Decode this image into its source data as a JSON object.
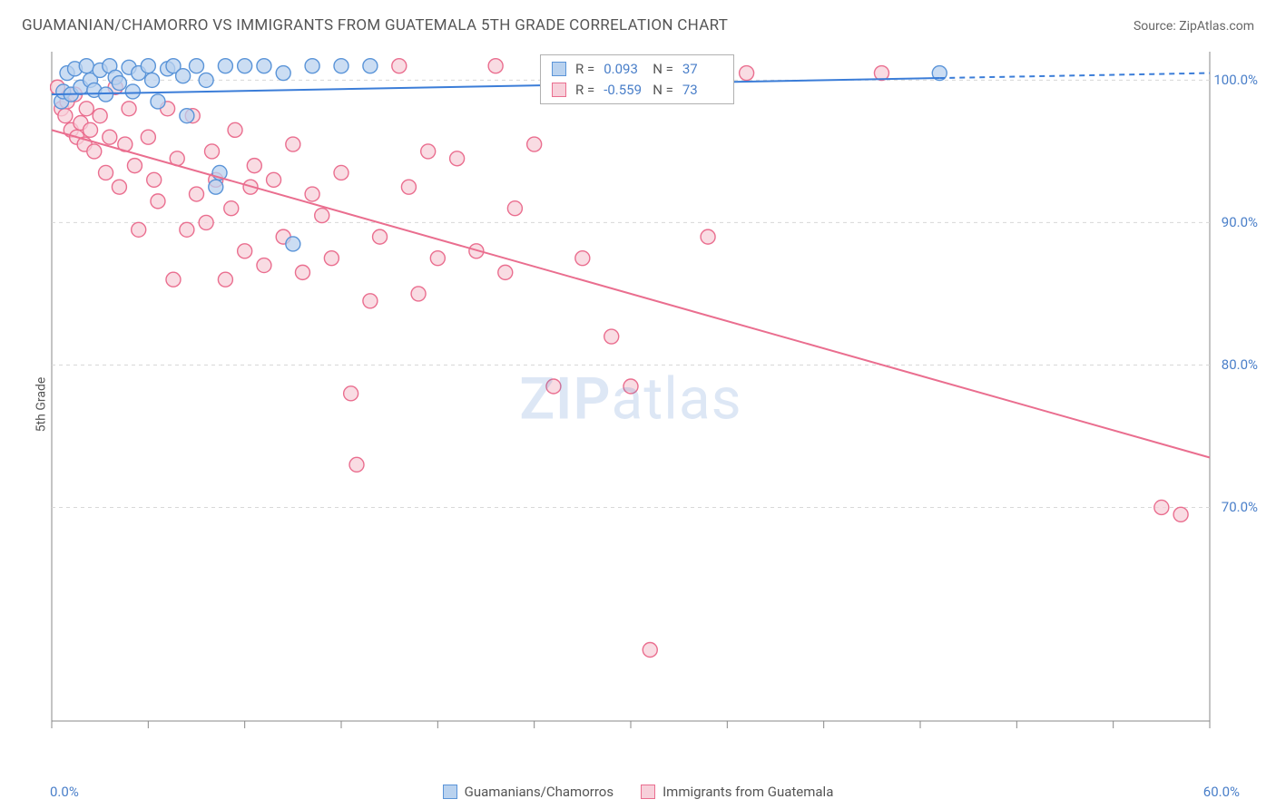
{
  "title": "GUAMANIAN/CHAMORRO VS IMMIGRANTS FROM GUATEMALA 5TH GRADE CORRELATION CHART",
  "source": "Source: ZipAtlas.com",
  "y_axis_label": "5th Grade",
  "watermark": {
    "zip": "ZIP",
    "atlas": "atlas"
  },
  "chart": {
    "type": "scatter",
    "background_color": "#ffffff",
    "grid_color": "#d8d8d8",
    "axis_color": "#888888",
    "tick_color": "#888888",
    "xlim": [
      0,
      60
    ],
    "ylim": [
      55,
      102
    ],
    "x_tick_positions": [
      0,
      5,
      10,
      15,
      20,
      25,
      30,
      35,
      40,
      45,
      50,
      55,
      60
    ],
    "y_ticks": [
      {
        "value": 100,
        "label": "100.0%"
      },
      {
        "value": 90,
        "label": "90.0%"
      },
      {
        "value": 80,
        "label": "80.0%"
      },
      {
        "value": 70,
        "label": "70.0%"
      }
    ],
    "x_min_label": "0.0%",
    "x_max_label": "60.0%",
    "marker_radius": 8,
    "marker_stroke_width": 1.4,
    "line_width": 2,
    "series": [
      {
        "name": "Guamanians/Chamorros",
        "fill_color": "#b9d2ef",
        "stroke_color": "#5a94d8",
        "line_color": "#3b7dd8",
        "R_label": "R =",
        "R_value": "0.093",
        "N_label": "N =",
        "N_value": "37",
        "regression": {
          "x1": 0,
          "y1": 99.0,
          "x2": 60,
          "y2": 100.5,
          "dash_after_x": 46
        },
        "points": [
          [
            0.5,
            98.5
          ],
          [
            0.6,
            99.2
          ],
          [
            0.8,
            100.5
          ],
          [
            1.0,
            99.0
          ],
          [
            1.2,
            100.8
          ],
          [
            1.5,
            99.5
          ],
          [
            1.8,
            101.0
          ],
          [
            2.0,
            100.0
          ],
          [
            2.2,
            99.3
          ],
          [
            2.5,
            100.7
          ],
          [
            2.8,
            99.0
          ],
          [
            3.0,
            101.0
          ],
          [
            3.3,
            100.2
          ],
          [
            3.5,
            99.8
          ],
          [
            4.0,
            100.9
          ],
          [
            4.2,
            99.2
          ],
          [
            4.5,
            100.5
          ],
          [
            5.0,
            101.0
          ],
          [
            5.2,
            100.0
          ],
          [
            5.5,
            98.5
          ],
          [
            6.0,
            100.8
          ],
          [
            6.3,
            101.0
          ],
          [
            6.8,
            100.3
          ],
          [
            7.0,
            97.5
          ],
          [
            7.5,
            101.0
          ],
          [
            8.0,
            100.0
          ],
          [
            8.5,
            92.5
          ],
          [
            8.7,
            93.5
          ],
          [
            9.0,
            101.0
          ],
          [
            10.0,
            101.0
          ],
          [
            11.0,
            101.0
          ],
          [
            12.0,
            100.5
          ],
          [
            12.5,
            88.5
          ],
          [
            13.5,
            101.0
          ],
          [
            15.0,
            101.0
          ],
          [
            16.5,
            101.0
          ],
          [
            46.0,
            100.5
          ]
        ]
      },
      {
        "name": "Immigrants from Guatemala",
        "fill_color": "#f7d0da",
        "stroke_color": "#ea6e8f",
        "line_color": "#ea6e8f",
        "R_label": "R =",
        "R_value": "-0.559",
        "N_label": "N =",
        "N_value": "73",
        "regression": {
          "x1": 0,
          "y1": 96.5,
          "x2": 60,
          "y2": 73.5,
          "dash_after_x": 60
        },
        "points": [
          [
            0.3,
            99.5
          ],
          [
            0.5,
            98.0
          ],
          [
            0.7,
            97.5
          ],
          [
            0.8,
            98.5
          ],
          [
            1.0,
            96.5
          ],
          [
            1.2,
            99.0
          ],
          [
            1.3,
            96.0
          ],
          [
            1.5,
            97.0
          ],
          [
            1.7,
            95.5
          ],
          [
            1.8,
            98.0
          ],
          [
            2.0,
            96.5
          ],
          [
            2.2,
            95.0
          ],
          [
            2.5,
            97.5
          ],
          [
            2.8,
            93.5
          ],
          [
            3.0,
            96.0
          ],
          [
            3.3,
            99.5
          ],
          [
            3.5,
            92.5
          ],
          [
            3.8,
            95.5
          ],
          [
            4.0,
            98.0
          ],
          [
            4.3,
            94.0
          ],
          [
            4.5,
            89.5
          ],
          [
            5.0,
            96.0
          ],
          [
            5.3,
            93.0
          ],
          [
            5.5,
            91.5
          ],
          [
            6.0,
            98.0
          ],
          [
            6.3,
            86.0
          ],
          [
            6.5,
            94.5
          ],
          [
            7.0,
            89.5
          ],
          [
            7.3,
            97.5
          ],
          [
            7.5,
            92.0
          ],
          [
            8.0,
            90.0
          ],
          [
            8.3,
            95.0
          ],
          [
            8.5,
            93.0
          ],
          [
            9.0,
            86.0
          ],
          [
            9.3,
            91.0
          ],
          [
            9.5,
            96.5
          ],
          [
            10.0,
            88.0
          ],
          [
            10.3,
            92.5
          ],
          [
            10.5,
            94.0
          ],
          [
            11.0,
            87.0
          ],
          [
            11.5,
            93.0
          ],
          [
            12.0,
            89.0
          ],
          [
            12.5,
            95.5
          ],
          [
            13.0,
            86.5
          ],
          [
            13.5,
            92.0
          ],
          [
            14.0,
            90.5
          ],
          [
            14.5,
            87.5
          ],
          [
            15.0,
            93.5
          ],
          [
            15.5,
            78.0
          ],
          [
            15.8,
            73.0
          ],
          [
            16.5,
            84.5
          ],
          [
            17.0,
            89.0
          ],
          [
            18.0,
            101.0
          ],
          [
            18.5,
            92.5
          ],
          [
            19.0,
            85.0
          ],
          [
            19.5,
            95.0
          ],
          [
            20.0,
            87.5
          ],
          [
            21.0,
            94.5
          ],
          [
            22.0,
            88.0
          ],
          [
            23.0,
            101.0
          ],
          [
            23.5,
            86.5
          ],
          [
            24.0,
            91.0
          ],
          [
            25.0,
            95.5
          ],
          [
            26.0,
            78.5
          ],
          [
            27.5,
            87.5
          ],
          [
            29.0,
            82.0
          ],
          [
            30.0,
            78.5
          ],
          [
            31.0,
            60.0
          ],
          [
            34.0,
            89.0
          ],
          [
            36.0,
            100.5
          ],
          [
            43.0,
            100.5
          ],
          [
            57.5,
            70.0
          ],
          [
            58.5,
            69.5
          ]
        ]
      }
    ]
  },
  "legend": {
    "item1": "Guamanians/Chamorros",
    "item2": "Immigrants from Guatemala"
  }
}
